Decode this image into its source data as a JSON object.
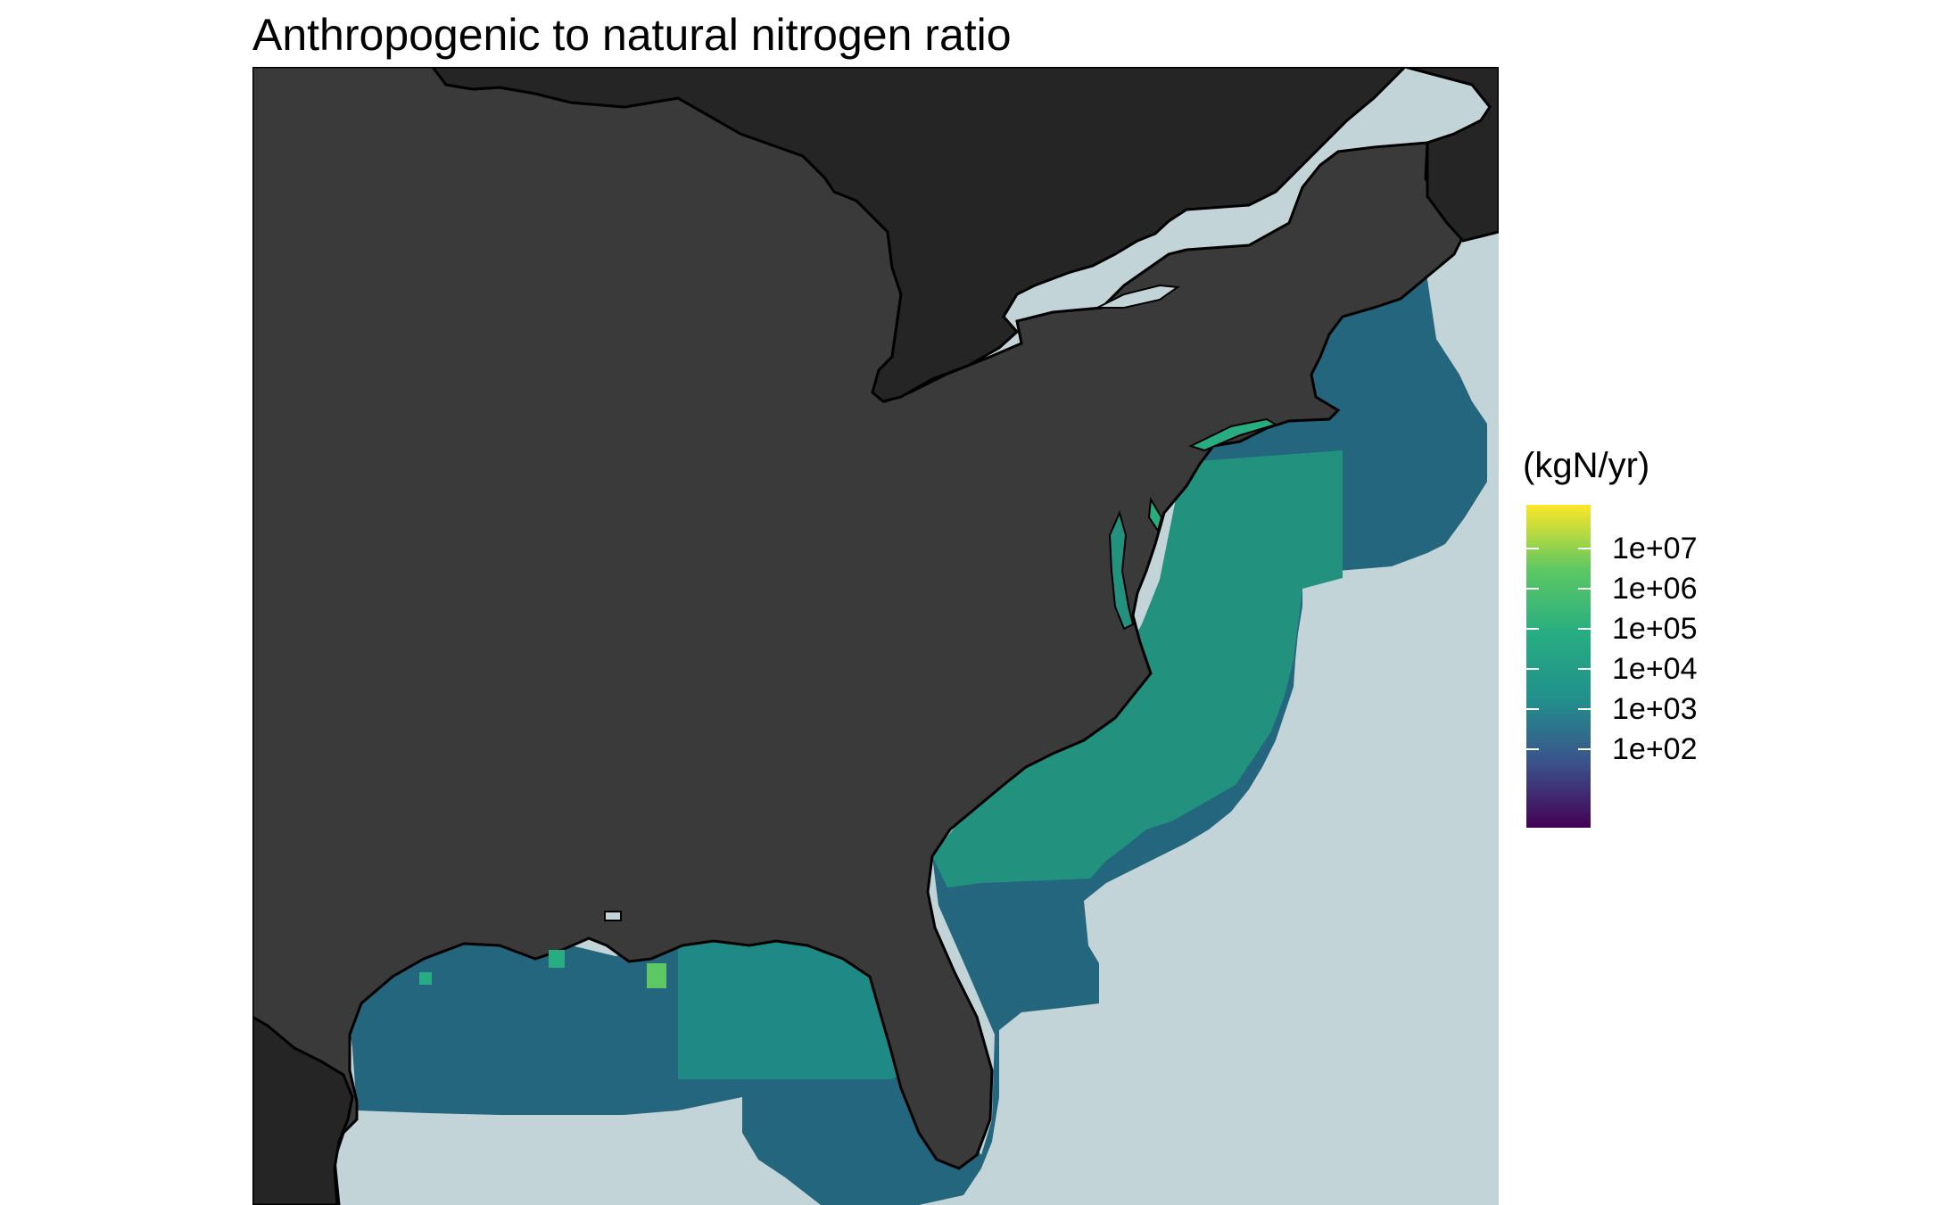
{
  "title": "Anthropogenic to natural nitrogen ratio",
  "legend": {
    "title": "(kgN/yr)",
    "scale": "log10",
    "palette": "viridis",
    "colors": [
      "#440154",
      "#3b528b",
      "#21908c",
      "#27ad81",
      "#5dc863",
      "#fde725"
    ],
    "ticks": [
      "1e+07",
      "1e+06",
      "1e+05",
      "1e+04",
      "1e+03",
      "1e+02"
    ]
  },
  "map": {
    "region": "Eastern United States coastal waters",
    "ocean_color": "#c3d4d8",
    "us_land_color": "#3a3a3a",
    "other_land_color": "#252525",
    "boundary_color": "#000000"
  }
}
